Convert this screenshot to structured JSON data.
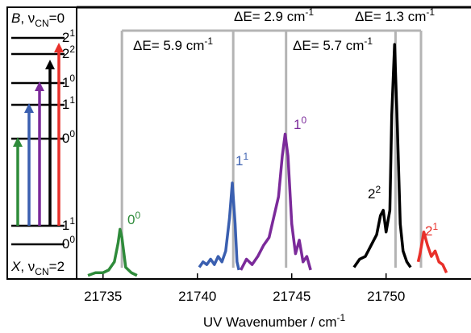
{
  "chart_data": {
    "type": "line",
    "xlabel": {
      "text": "UV Wavenumber / cm",
      "sup": "-1"
    },
    "xlim": [
      21733.6,
      21754.5
    ],
    "ylim": [
      0,
      1
    ],
    "xticks": [
      21735,
      21740,
      21745,
      21750
    ],
    "series": [
      {
        "name": "0-0",
        "color": "#2e8b3a",
        "x": [
          21734.2,
          21734.6,
          21735.0,
          21735.3,
          21735.6,
          21735.8,
          21735.9,
          21736.0,
          21736.2,
          21736.5,
          21736.8
        ],
        "values": [
          0.01,
          0.02,
          0.02,
          0.03,
          0.06,
          0.13,
          0.18,
          0.15,
          0.04,
          0.02,
          0.01
        ]
      },
      {
        "name": "1-1",
        "color": "#3a5fb0",
        "x": [
          21740.1,
          21740.3,
          21740.5,
          21740.7,
          21740.9,
          21741.1,
          21741.3,
          21741.5,
          21741.7,
          21741.85,
          21742.0,
          21742.1,
          21742.2
        ],
        "values": [
          0.04,
          0.06,
          0.05,
          0.07,
          0.05,
          0.08,
          0.06,
          0.1,
          0.22,
          0.35,
          0.2,
          0.06,
          0.03
        ]
      },
      {
        "name": "1-0",
        "color": "#7b2a9a",
        "x": [
          21742.3,
          21742.6,
          21742.9,
          21743.2,
          21743.5,
          21743.8,
          21744.1,
          21744.3,
          21744.5,
          21744.65,
          21744.8,
          21745.0,
          21745.2,
          21745.4,
          21745.6,
          21745.8,
          21746.0
        ],
        "values": [
          0.03,
          0.07,
          0.05,
          0.08,
          0.12,
          0.15,
          0.24,
          0.3,
          0.45,
          0.53,
          0.45,
          0.2,
          0.09,
          0.14,
          0.06,
          0.08,
          0.03
        ]
      },
      {
        "name": "2-2",
        "color": "#000000",
        "x": [
          21748.3,
          21748.6,
          21748.9,
          21749.2,
          21749.5,
          21749.7,
          21749.85,
          21750.0,
          21750.2,
          21750.3,
          21750.45,
          21750.6,
          21750.75,
          21750.9,
          21751.1,
          21751.3
        ],
        "values": [
          0.04,
          0.07,
          0.08,
          0.12,
          0.16,
          0.23,
          0.25,
          0.17,
          0.25,
          0.6,
          0.86,
          0.55,
          0.2,
          0.1,
          0.06,
          0.04
        ]
      },
      {
        "name": "2-1",
        "color": "#e8302a",
        "x": [
          21751.7,
          21751.8,
          21752.0,
          21752.2,
          21752.4,
          21752.6,
          21752.8,
          21753.0,
          21753.2
        ],
        "values": [
          0.06,
          0.09,
          0.17,
          0.12,
          0.08,
          0.1,
          0.06,
          0.05,
          0.02
        ]
      }
    ],
    "peak_labels": [
      {
        "text": "0",
        "sup": "0"
      },
      {
        "text": "1",
        "sup": "1"
      },
      {
        "text": "1",
        "sup": "0"
      },
      {
        "text": "2",
        "sup": "2"
      },
      {
        "text": "2",
        "sup": "1"
      }
    ],
    "markers": [
      21736.0,
      21741.9,
      21744.7,
      21750.5,
      21751.85
    ],
    "annotations": [
      {
        "text": "ΔE= 5.9 cm",
        "sup": "-1"
      },
      {
        "text": "ΔE= 2.9 cm",
        "sup": "-1"
      },
      {
        "text": "ΔE= 5.7 cm",
        "sup": "-1"
      },
      {
        "text": "ΔE= 1.3 cm",
        "sup": "-1"
      }
    ],
    "state_labels": [
      {
        "state": "B",
        "sep": ", ν",
        "sub": "CN",
        "tail": "=0"
      },
      {
        "state": "X",
        "sep": ", ν",
        "sub": "CN",
        "tail": "=2"
      }
    ],
    "level_labels": [
      {
        "text": "2",
        "sup": "1"
      },
      {
        "text": "2",
        "sup": "2"
      },
      {
        "text": "1",
        "sup": "0"
      },
      {
        "text": "1",
        "sup": "1"
      },
      {
        "text": "0",
        "sup": "0"
      },
      {
        "text": "1",
        "sup": "1"
      },
      {
        "text": "0",
        "sup": "0"
      }
    ]
  }
}
